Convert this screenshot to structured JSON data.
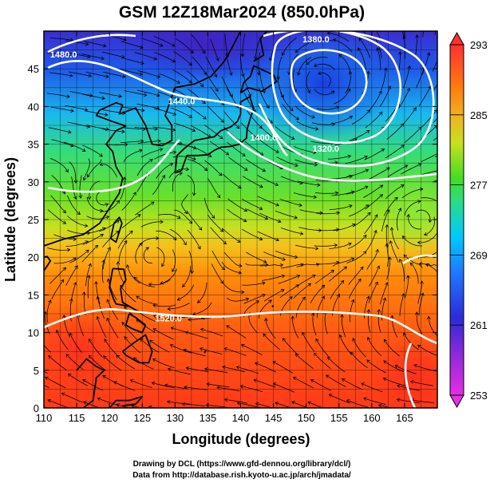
{
  "title": "GSM 12Z18Mar2024 (850.0hPa)",
  "x_axis": {
    "label": "Longitude (degrees)",
    "range": [
      110,
      170
    ],
    "ticks": [
      110,
      115,
      120,
      125,
      130,
      135,
      140,
      145,
      150,
      155,
      160,
      165
    ]
  },
  "y_axis": {
    "label": "Latitude  (degrees)",
    "range": [
      0,
      50
    ],
    "ticks": [
      0,
      5,
      10,
      15,
      20,
      25,
      30,
      35,
      40,
      45
    ]
  },
  "colorbar": {
    "ticks": [
      253,
      261,
      269,
      277,
      285,
      293
    ],
    "colors": [
      "#e62ee6",
      "#2b2bd9",
      "#00c8ff",
      "#44dd22",
      "#f0d020",
      "#ff8a00",
      "#ff3030"
    ]
  },
  "contour_labels": [
    {
      "text": "1380.0",
      "lon": 151.5,
      "lat": 48.5
    },
    {
      "text": "1480.0",
      "lon": 113.0,
      "lat": 46.5
    },
    {
      "text": "1440.0",
      "lon": 131.0,
      "lat": 40.3
    },
    {
      "text": "1400.0",
      "lon": 143.5,
      "lat": 35.5
    },
    {
      "text": "1320.0",
      "lon": 153.0,
      "lat": 34.0
    },
    {
      "text": "1520.0",
      "lon": 129.0,
      "lat": 11.5
    }
  ],
  "credits": [
    "Drawing by DCL (https://www.gfd-dennou.org/library/dcl/)",
    "Data from http://database.rish.kyoto-u.ac.jp/arch/jmadata/"
  ]
}
